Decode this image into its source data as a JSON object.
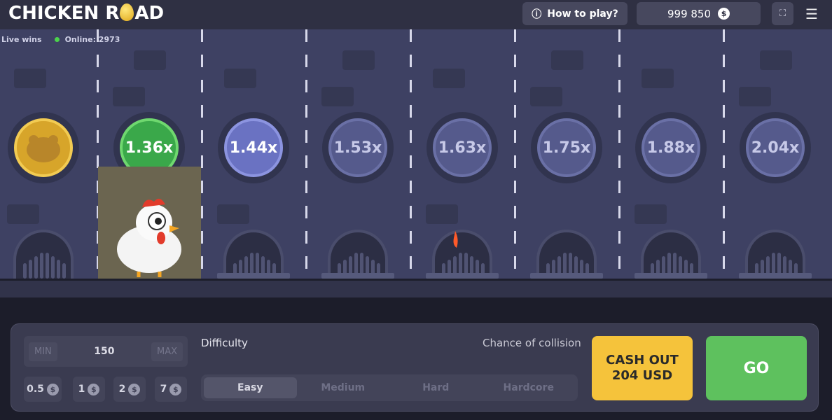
{
  "header": {
    "logo_left": "CHICKEN R",
    "logo_right": "AD",
    "how_to_play": "How to play?",
    "balance": "999 850",
    "currency_icon": "$"
  },
  "live": {
    "live_wins": "Live wins",
    "online": "Online: 2973"
  },
  "multipliers": [
    "1.36x",
    "1.44x",
    "1.53x",
    "1.63x",
    "1.75x",
    "1.88x",
    "2.04x"
  ],
  "bet": {
    "min": "MIN",
    "value": "150",
    "max": "MAX",
    "chips": [
      "0.5",
      "1",
      "2",
      "7"
    ]
  },
  "difficulty": {
    "label": "Difficulty",
    "chance_label": "Chance of collision",
    "options": [
      "Easy",
      "Medium",
      "Hard",
      "Hardcore"
    ],
    "selected": "Easy"
  },
  "cash_out": {
    "line1": "CASH OUT",
    "line2": "204 USD"
  },
  "go": "GO",
  "colors": {
    "cash_out": "#f5c33b",
    "go": "#5ec15e",
    "won": "#3aa84a",
    "next": "#6a72c2"
  }
}
